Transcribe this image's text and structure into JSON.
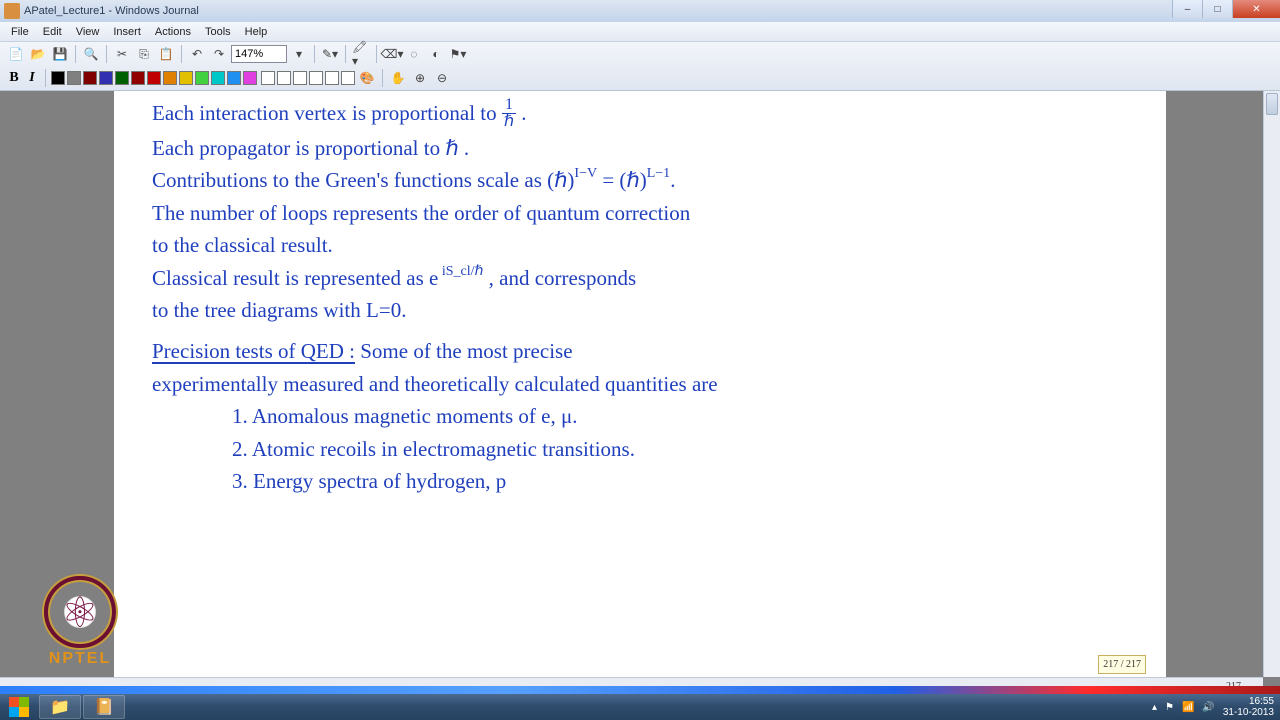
{
  "window": {
    "title": "APatel_Lecture1 - Windows Journal",
    "controls": {
      "min": "–",
      "max": "□",
      "close": "✕"
    }
  },
  "menu": {
    "file": "File",
    "edit": "Edit",
    "view": "View",
    "insert": "Insert",
    "actions": "Actions",
    "tools": "Tools",
    "help": "Help"
  },
  "toolbar": {
    "zoom": "147%",
    "bold": "B",
    "italic": "I",
    "colors": [
      "#000000",
      "#808080",
      "#800000",
      "#3030b0",
      "#006000",
      "#900000",
      "#c00000",
      "#e08000",
      "#e0c000",
      "#40d040",
      "#00c8c8",
      "#2090f0",
      "#e040e0"
    ],
    "empty_boxes": 6
  },
  "notes": {
    "l1a": "Each interaction vertex is proportional to ",
    "l1_frac_num": "1",
    "l1_frac_den": "ℏ",
    "l1b": " .",
    "l2": "Each propagator is proportional to ℏ .",
    "l3a": "Contributions to the Green's functions scale as (ℏ)",
    "l3_exp1": "I−V",
    "l3b": " = (ℏ)",
    "l3_exp2": "L−1",
    "l3c": ".",
    "l4": "The number of loops represents the order of quantum correction",
    "l5": "to the classical result.",
    "l6a": "Classical result is represented as e",
    "l6_exp": " iS_cl/ℏ",
    "l6b": " , and corresponds",
    "l7": "to the tree diagrams with L=0.",
    "h1": "Precision tests of QED :",
    "h1b": " Some of the most precise",
    "l8": "experimentally measured and theoretically calculated quantities are",
    "li1": "1. Anomalous magnetic moments of e, μ.",
    "li2": "2. Atomic recoils in electromagnetic transitions.",
    "li3": "3. Energy spectra of hydrogen, p"
  },
  "page_indicator": "217 / 217",
  "page_number": "217",
  "logo_text": "NPTEL",
  "tray": {
    "time": "16:55",
    "date": "31-10-2013"
  }
}
